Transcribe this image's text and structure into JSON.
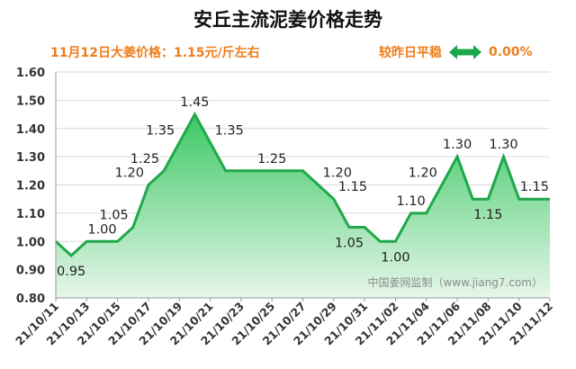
{
  "chart_data": {
    "type": "area",
    "title": "安丘主流泥姜价格走势",
    "subtitle": "11月12日大姜价格：1.15元/斤左右",
    "compare_label": "较昨日平稳",
    "compare_value": "0.00%",
    "watermark": "中国姜网监制（www.jiang7.com）",
    "ylim": [
      0.8,
      1.6
    ],
    "yticks": [
      "0.80",
      "0.90",
      "1.00",
      "1.10",
      "1.20",
      "1.30",
      "1.40",
      "1.50",
      "1.60"
    ],
    "xticks": [
      "21/10/11",
      "21/10/13",
      "21/10/15",
      "21/10/17",
      "21/10/19",
      "21/10/21",
      "21/10/23",
      "21/10/25",
      "21/10/27",
      "21/10/29",
      "21/10/31",
      "21/11/02",
      "21/11/04",
      "21/11/06",
      "21/11/08",
      "21/11/10",
      "21/11/12"
    ],
    "series": [
      {
        "name": "安丘主流泥姜价格",
        "values": [
          1.0,
          0.95,
          1.0,
          1.0,
          1.0,
          1.05,
          1.2,
          1.25,
          1.35,
          1.45,
          1.35,
          1.25,
          1.25,
          1.25,
          1.25,
          1.25,
          1.25,
          1.2,
          1.15,
          1.05,
          1.05,
          1.0,
          1.0,
          1.1,
          1.1,
          1.2,
          1.3,
          1.15,
          1.15,
          1.3,
          1.15,
          1.15,
          1.15
        ]
      }
    ],
    "data_labels": [
      {
        "index": 1,
        "text": "0.95"
      },
      {
        "index": 3,
        "text": "1.00"
      },
      {
        "index": 5,
        "text": "1.05"
      },
      {
        "index": 6,
        "text": "1.20"
      },
      {
        "index": 7,
        "text": "1.25"
      },
      {
        "index": 8,
        "text": "1.35"
      },
      {
        "index": 9,
        "text": "1.45"
      },
      {
        "index": 10,
        "text": "1.35"
      },
      {
        "index": 14,
        "text": "1.25"
      },
      {
        "index": 17,
        "text": "1.20"
      },
      {
        "index": 18,
        "text": "1.15"
      },
      {
        "index": 19,
        "text": "1.05"
      },
      {
        "index": 22,
        "text": "1.00"
      },
      {
        "index": 23,
        "text": "1.10"
      },
      {
        "index": 25,
        "text": "1.20"
      },
      {
        "index": 26,
        "text": "1.30"
      },
      {
        "index": 28,
        "text": "1.15"
      },
      {
        "index": 29,
        "text": "1.30"
      },
      {
        "index": 31,
        "text": "1.15"
      }
    ],
    "colors": {
      "line": "#1fa84a",
      "fill_top": "#3cc864",
      "fill_bottom": "#e6f6ea",
      "accent": "#ee7d1a",
      "arrow": "#1aa64a"
    }
  }
}
